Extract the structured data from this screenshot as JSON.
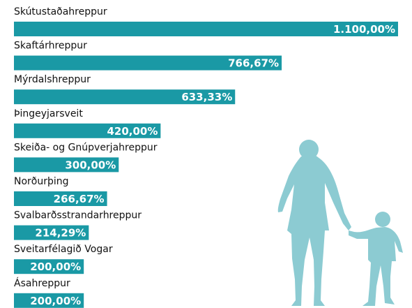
{
  "chart_data": {
    "type": "bar",
    "orientation": "horizontal",
    "categories": [
      "Skútustaðahreppur",
      "Skaftárhreppur",
      "Mýrdalshreppur",
      "Þingeyjarsveit",
      "Skeiða- og Gnúpverjahreppur",
      "Norðurþing",
      "Svalbarðsstrandarhreppur",
      "Sveitarfélagið Vogar",
      "Ásahreppur"
    ],
    "values": [
      1100,
      766.67,
      633.33,
      420,
      300,
      266.67,
      214.29,
      200,
      200
    ],
    "value_labels": [
      "1.100,00%",
      "766,67%",
      "633,33%",
      "420,00%",
      "300,00%",
      "266,67%",
      "214,29%",
      "200,00%",
      "200,00%"
    ],
    "color": "#1a99a5"
  }
}
